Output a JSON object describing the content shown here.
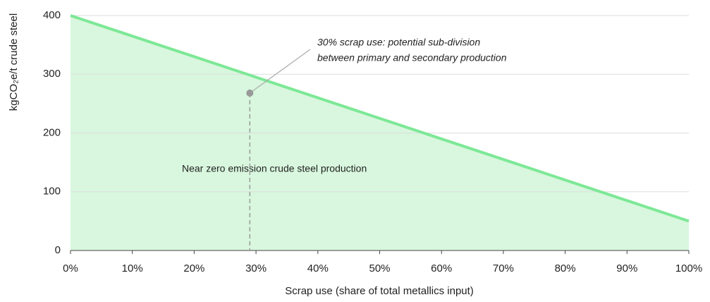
{
  "chart_data": {
    "type": "area",
    "x_label": "Scrap use (share of total metallics input)",
    "y_label": "kgCO₂e/t crude steel",
    "x": [
      0,
      100
    ],
    "series": [
      {
        "name": "Near zero emission crude steel production",
        "color": "#7de896",
        "fill": "#d8f7de",
        "values": [
          400,
          50
        ]
      }
    ],
    "xlim": [
      0,
      100
    ],
    "xticks": [
      {
        "value": 0,
        "label": "0%"
      },
      {
        "value": 10,
        "label": "10%"
      },
      {
        "value": 20,
        "label": "20%"
      },
      {
        "value": 30,
        "label": "30%"
      },
      {
        "value": 40,
        "label": "40%"
      },
      {
        "value": 50,
        "label": "50%"
      },
      {
        "value": 60,
        "label": "60%"
      },
      {
        "value": 70,
        "label": "70%"
      },
      {
        "value": 80,
        "label": "80%"
      },
      {
        "value": 90,
        "label": "90%"
      },
      {
        "value": 100,
        "label": "100%"
      }
    ],
    "ylim": [
      0,
      400
    ],
    "yticks": [
      0,
      100,
      200,
      300,
      400
    ],
    "grid": true,
    "marker": {
      "x": 29,
      "y": 268,
      "label_lines": [
        "30% scrap use: potential sub-division",
        "between primary and secondary production"
      ]
    }
  }
}
